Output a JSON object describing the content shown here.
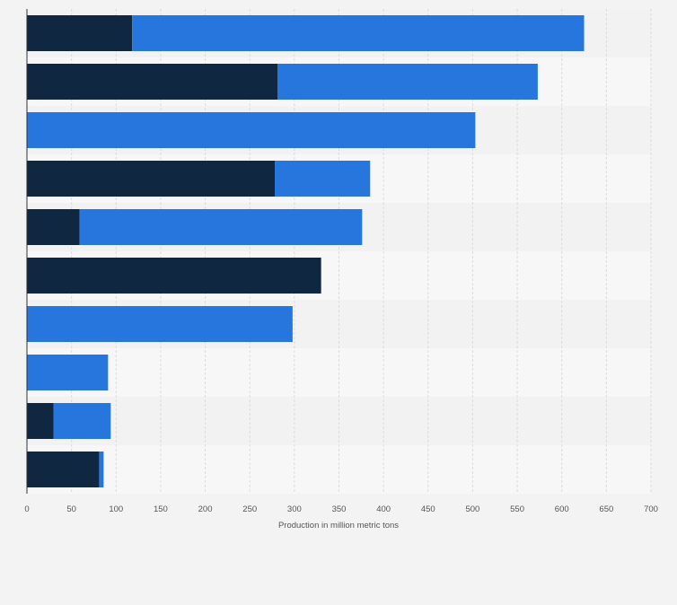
{
  "colors": {
    "background": "#f3f3f3",
    "band_light": "#f7f7f8",
    "band_dark": "#f2f2f3",
    "grid": "#dcdcdc",
    "axis": "#333333",
    "tick_text": "#555555"
  },
  "chart_data": {
    "type": "bar",
    "orientation": "horizontal",
    "stacked": true,
    "title": "",
    "xlabel": "Production in million metric tons",
    "ylabel": "",
    "xlim": [
      0,
      700
    ],
    "x_ticks": [
      0,
      50,
      100,
      150,
      200,
      250,
      300,
      350,
      400,
      450,
      500,
      550,
      600,
      650,
      700
    ],
    "grid": true,
    "legend": "none",
    "categories": [
      "",
      "",
      "",
      "",
      "",
      "",
      "",
      "",
      "",
      ""
    ],
    "series": [
      {
        "color": "#0f2740",
        "values": [
          118,
          281,
          0,
          278,
          59,
          330,
          0,
          0,
          30,
          81
        ]
      },
      {
        "color": "#2676de",
        "values": [
          507,
          292,
          503,
          107,
          317,
          0,
          298,
          91,
          64,
          5
        ]
      }
    ]
  }
}
